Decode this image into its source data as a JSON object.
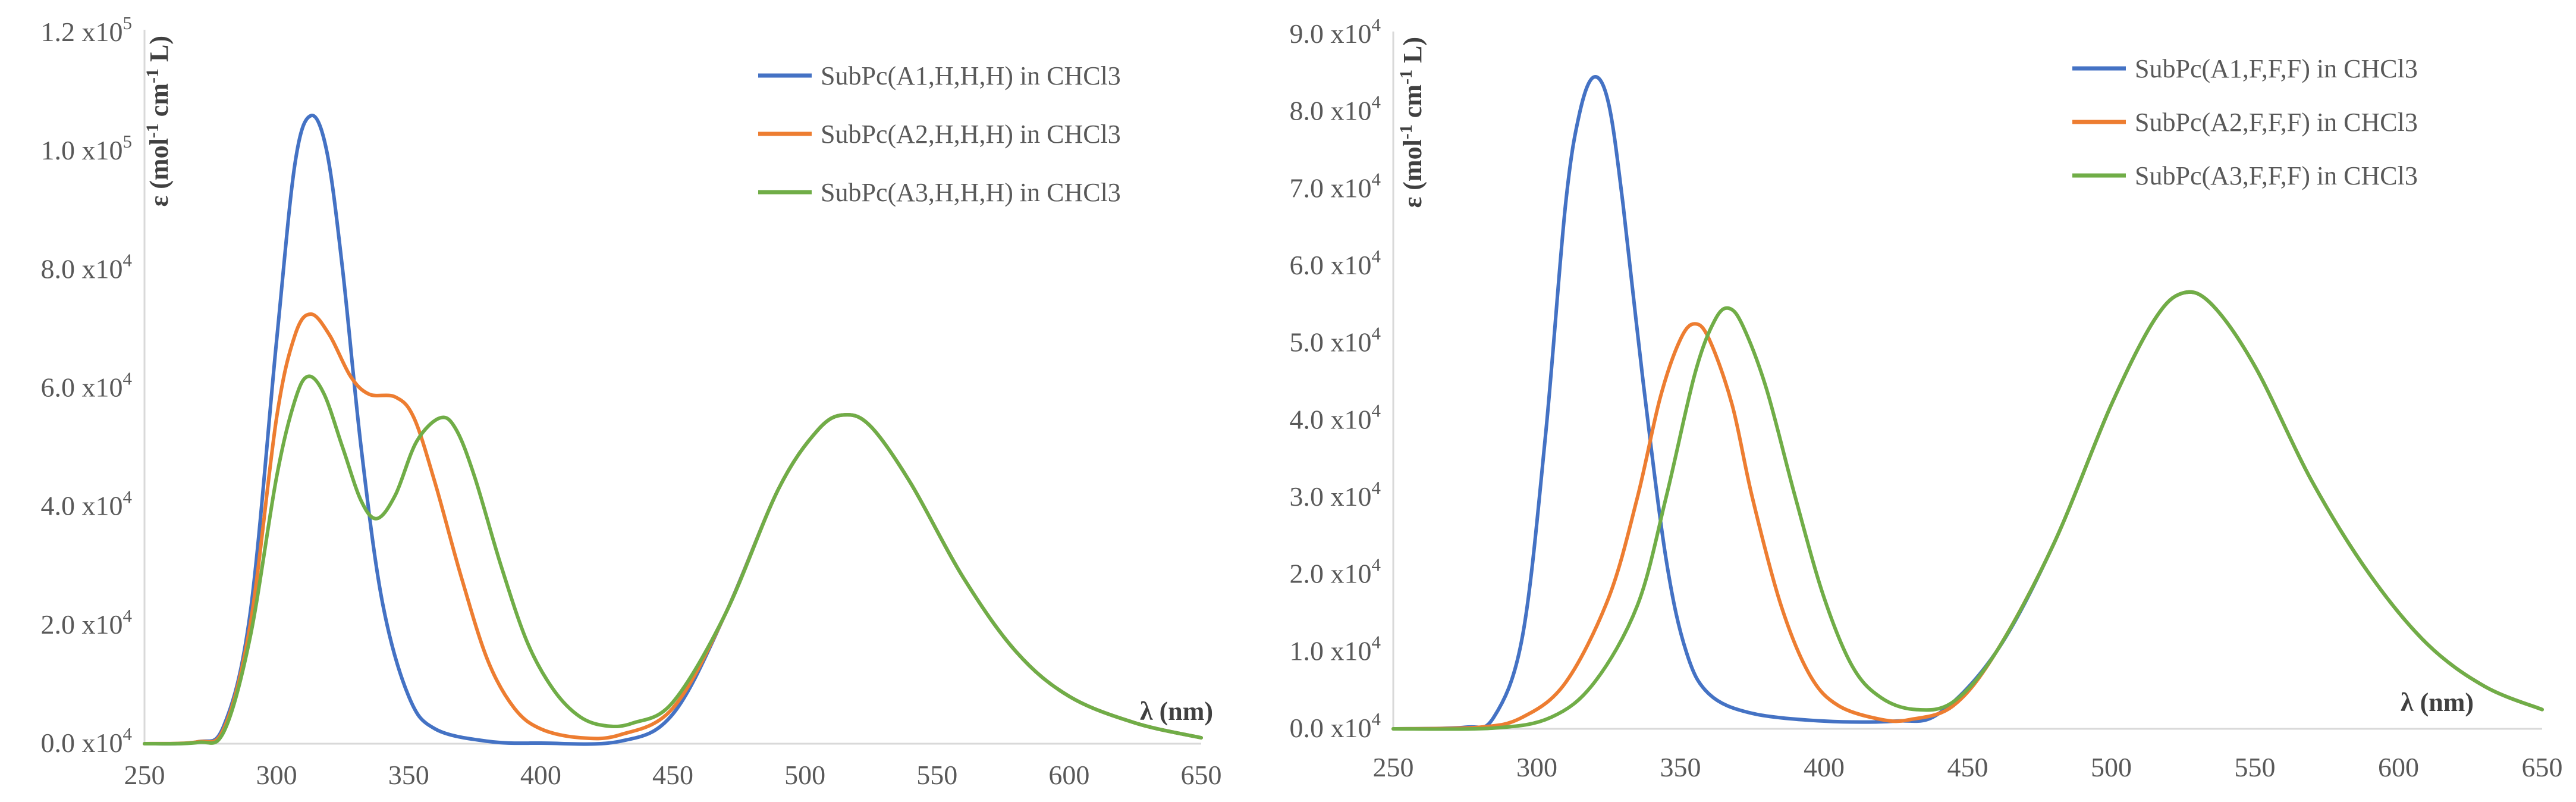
{
  "chart_data": [
    {
      "type": "line",
      "title": "",
      "xlabel": "λ (nm)",
      "ylabel_parts": {
        "prefix": "ε (mol",
        "sup1": "-1",
        "mid": " cm",
        "sup2": "-1",
        "suffix": " L)"
      },
      "xlim": [
        250,
        650
      ],
      "ylim": [
        0,
        120000
      ],
      "x_ticks": [
        "250",
        "300",
        "350",
        "400",
        "450",
        "500",
        "550",
        "600",
        "650"
      ],
      "y_ticks": [
        {
          "value": 0,
          "mantissa": "0.0 x10",
          "exp": "4"
        },
        {
          "value": 20000,
          "mantissa": "2.0 x10",
          "exp": "4"
        },
        {
          "value": 40000,
          "mantissa": "4.0 x10",
          "exp": "4"
        },
        {
          "value": 60000,
          "mantissa": "6.0 x10",
          "exp": "4"
        },
        {
          "value": 80000,
          "mantissa": "8.0 x10",
          "exp": "4"
        },
        {
          "value": 100000,
          "mantissa": "1.0 x10",
          "exp": "5"
        },
        {
          "value": 120000,
          "mantissa": "1.2 x10",
          "exp": "5"
        }
      ],
      "legend_position": "top-right",
      "series": [
        {
          "name": "SubPc(A1,H,H,H) in CHCl3",
          "color": "#4472C4",
          "points": [
            [
              250,
              0
            ],
            [
              270,
              300
            ],
            [
              280,
              3000
            ],
            [
              290,
              22000
            ],
            [
              300,
              68000
            ],
            [
              307,
              98000
            ],
            [
              313,
              106000
            ],
            [
              319,
              100000
            ],
            [
              325,
              80000
            ],
            [
              332,
              50000
            ],
            [
              340,
              24000
            ],
            [
              350,
              8000
            ],
            [
              360,
              2500
            ],
            [
              380,
              400
            ],
            [
              400,
              100
            ],
            [
              430,
              400
            ],
            [
              450,
              5000
            ],
            [
              470,
              22000
            ],
            [
              490,
              43000
            ],
            [
              505,
              53000
            ],
            [
              515,
              55500
            ],
            [
              525,
              53500
            ],
            [
              540,
              44000
            ],
            [
              560,
              28000
            ],
            [
              580,
              15500
            ],
            [
              600,
              8000
            ],
            [
              625,
              3500
            ],
            [
              650,
              1000
            ]
          ]
        },
        {
          "name": "SubPc(A2,H,H,H) in CHCl3",
          "color": "#ED7D31",
          "points": [
            [
              250,
              0
            ],
            [
              270,
              300
            ],
            [
              280,
              2500
            ],
            [
              290,
              20000
            ],
            [
              300,
              55000
            ],
            [
              307,
              69000
            ],
            [
              313,
              72500
            ],
            [
              320,
              69000
            ],
            [
              328,
              62000
            ],
            [
              335,
              59000
            ],
            [
              345,
              58500
            ],
            [
              352,
              55000
            ],
            [
              360,
              44000
            ],
            [
              370,
              28000
            ],
            [
              380,
              14000
            ],
            [
              390,
              6000
            ],
            [
              400,
              2500
            ],
            [
              415,
              1000
            ],
            [
              430,
              1500
            ],
            [
              450,
              6000
            ],
            [
              470,
              22000
            ],
            [
              490,
              43000
            ],
            [
              505,
              53000
            ],
            [
              515,
              55500
            ],
            [
              525,
              53500
            ],
            [
              540,
              44000
            ],
            [
              560,
              28000
            ],
            [
              580,
              15500
            ],
            [
              600,
              8000
            ],
            [
              625,
              3500
            ],
            [
              650,
              1000
            ]
          ]
        },
        {
          "name": "SubPc(A3,H,H,H) in CHCl3",
          "color": "#70AD47",
          "points": [
            [
              250,
              0
            ],
            [
              270,
              200
            ],
            [
              280,
              2000
            ],
            [
              290,
              18000
            ],
            [
              300,
              45000
            ],
            [
              307,
              58000
            ],
            [
              312,
              62000
            ],
            [
              318,
              59000
            ],
            [
              325,
              50000
            ],
            [
              332,
              41000
            ],
            [
              338,
              38000
            ],
            [
              345,
              42000
            ],
            [
              353,
              51000
            ],
            [
              362,
              55000
            ],
            [
              368,
              53000
            ],
            [
              375,
              45000
            ],
            [
              385,
              30000
            ],
            [
              395,
              17000
            ],
            [
              405,
              9000
            ],
            [
              415,
              4500
            ],
            [
              425,
              3000
            ],
            [
              435,
              3500
            ],
            [
              450,
              7000
            ],
            [
              470,
              22000
            ],
            [
              490,
              43000
            ],
            [
              505,
              53000
            ],
            [
              515,
              55500
            ],
            [
              525,
              53500
            ],
            [
              540,
              44000
            ],
            [
              560,
              28000
            ],
            [
              580,
              15500
            ],
            [
              600,
              8000
            ],
            [
              625,
              3500
            ],
            [
              650,
              1000
            ]
          ]
        }
      ]
    },
    {
      "type": "line",
      "title": "",
      "xlabel": "λ (nm)",
      "ylabel_parts": {
        "prefix": "ε (mol",
        "sup1": "-1",
        "mid": " cm",
        "sup2": "-1",
        "suffix": " L)"
      },
      "xlim": [
        250,
        650
      ],
      "ylim": [
        0,
        90000
      ],
      "x_ticks": [
        "250",
        "300",
        "350",
        "400",
        "450",
        "500",
        "550",
        "600",
        "650"
      ],
      "y_ticks": [
        {
          "value": 0,
          "mantissa": "0.0 x10",
          "exp": "4"
        },
        {
          "value": 10000,
          "mantissa": "1.0 x10",
          "exp": "4"
        },
        {
          "value": 20000,
          "mantissa": "2.0 x10",
          "exp": "4"
        },
        {
          "value": 30000,
          "mantissa": "3.0 x10",
          "exp": "4"
        },
        {
          "value": 40000,
          "mantissa": "4.0 x10",
          "exp": "4"
        },
        {
          "value": 50000,
          "mantissa": "5.0 x10",
          "exp": "4"
        },
        {
          "value": 60000,
          "mantissa": "6.0 x10",
          "exp": "4"
        },
        {
          "value": 70000,
          "mantissa": "7.0 x10",
          "exp": "4"
        },
        {
          "value": 80000,
          "mantissa": "8.0 x10",
          "exp": "4"
        },
        {
          "value": 90000,
          "mantissa": "9.0 x10",
          "exp": "4"
        }
      ],
      "legend_position": "top-right",
      "series": [
        {
          "name": "SubPc(A1,F,F,F) in CHCl3",
          "color": "#4472C4",
          "points": [
            [
              250,
              0
            ],
            [
              275,
              200
            ],
            [
              285,
              1500
            ],
            [
              295,
              12000
            ],
            [
              303,
              38000
            ],
            [
              310,
              68000
            ],
            [
              315,
              80000
            ],
            [
              320,
              84500
            ],
            [
              325,
              81000
            ],
            [
              330,
              68000
            ],
            [
              337,
              45000
            ],
            [
              345,
              22000
            ],
            [
              352,
              10000
            ],
            [
              360,
              4500
            ],
            [
              375,
              2000
            ],
            [
              400,
              1000
            ],
            [
              425,
              1000
            ],
            [
              440,
              2000
            ],
            [
              460,
              10000
            ],
            [
              480,
              24000
            ],
            [
              500,
              42000
            ],
            [
              515,
              53000
            ],
            [
              525,
              56500
            ],
            [
              535,
              55000
            ],
            [
              550,
              47000
            ],
            [
              570,
              32000
            ],
            [
              590,
              20000
            ],
            [
              610,
              11000
            ],
            [
              630,
              5500
            ],
            [
              650,
              2500
            ]
          ]
        },
        {
          "name": "SubPc(A2,F,F,F) in CHCl3",
          "color": "#ED7D31",
          "points": [
            [
              250,
              0
            ],
            [
              280,
              200
            ],
            [
              295,
              1500
            ],
            [
              310,
              6000
            ],
            [
              325,
              17000
            ],
            [
              335,
              30000
            ],
            [
              343,
              43000
            ],
            [
              350,
              50500
            ],
            [
              355,
              52500
            ],
            [
              360,
              50500
            ],
            [
              368,
              42000
            ],
            [
              375,
              30000
            ],
            [
              385,
              16000
            ],
            [
              395,
              7000
            ],
            [
              405,
              3000
            ],
            [
              420,
              1200
            ],
            [
              430,
              1200
            ],
            [
              445,
              3000
            ],
            [
              460,
              10000
            ],
            [
              480,
              24000
            ],
            [
              500,
              42000
            ],
            [
              515,
              53000
            ],
            [
              525,
              56500
            ],
            [
              535,
              55000
            ],
            [
              550,
              47000
            ],
            [
              570,
              32000
            ],
            [
              590,
              20000
            ],
            [
              610,
              11000
            ],
            [
              630,
              5500
            ],
            [
              650,
              2500
            ]
          ]
        },
        {
          "name": "SubPc(A3,F,F,F) in CHCl3",
          "color": "#70AD47",
          "points": [
            [
              250,
              0
            ],
            [
              285,
              100
            ],
            [
              305,
              1500
            ],
            [
              320,
              6000
            ],
            [
              335,
              16000
            ],
            [
              345,
              30000
            ],
            [
              355,
              46000
            ],
            [
              362,
              53000
            ],
            [
              367,
              54500
            ],
            [
              372,
              52000
            ],
            [
              380,
              44000
            ],
            [
              390,
              30000
            ],
            [
              400,
              17000
            ],
            [
              410,
              8000
            ],
            [
              420,
              4000
            ],
            [
              432,
              2500
            ],
            [
              445,
              3500
            ],
            [
              460,
              10000
            ],
            [
              480,
              24000
            ],
            [
              500,
              42000
            ],
            [
              515,
              53000
            ],
            [
              525,
              56500
            ],
            [
              535,
              55000
            ],
            [
              550,
              47000
            ],
            [
              570,
              32000
            ],
            [
              590,
              20000
            ],
            [
              610,
              11000
            ],
            [
              630,
              5500
            ],
            [
              650,
              2500
            ]
          ]
        }
      ]
    }
  ]
}
